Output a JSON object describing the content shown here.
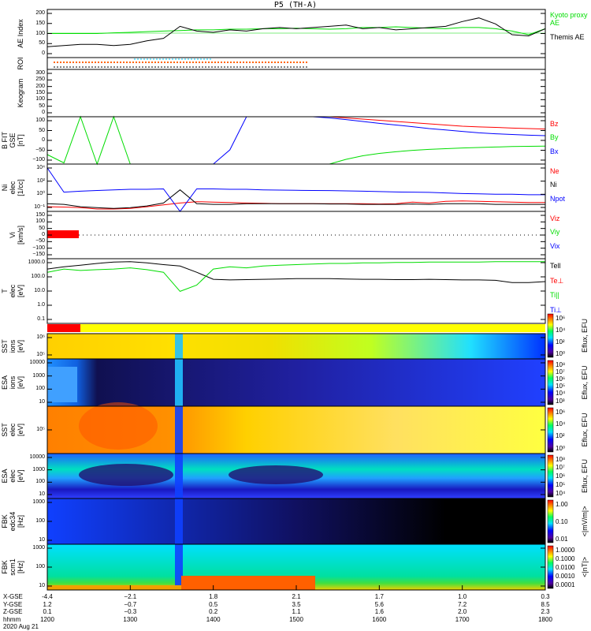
{
  "title": "P5 (TH-A)",
  "date": "2020 Aug 21",
  "colors": {
    "red": "#ff0000",
    "green": "#00dd00",
    "blue": "#0000ff",
    "black": "#000000",
    "orange": "#ff6600",
    "yellow": "#ffff00"
  },
  "chart_data": {
    "type": "line",
    "x_unit": "minutes after 1200 UT",
    "t_min": [
      0,
      20,
      40,
      60,
      80,
      100,
      120,
      140,
      160,
      180,
      200,
      220,
      240,
      260,
      280,
      300,
      320,
      340,
      360,
      380,
      400,
      420,
      440,
      460,
      480,
      500,
      520,
      540,
      560,
      580,
      600
    ],
    "panels": [
      {
        "id": "ae",
        "ylabel": "AE Index",
        "ylim": [
          0,
          200
        ],
        "ticks": [
          "200",
          "150",
          "100",
          "50",
          "0"
        ],
        "series": [
          {
            "name": "Kyoto proxy AE",
            "legend": "Kyoto proxy AE",
            "color": "#00dd00",
            "values": [
              100,
              100,
              100,
              100,
              103,
              105,
              108,
              110,
              112,
              115,
              115,
              118,
              118,
              120,
              120,
              122,
              120,
              118,
              120,
              125,
              125,
              128,
              125,
              122,
              120,
              125,
              125,
              120,
              110,
              95,
              120
            ]
          },
          {
            "name": "Themis AE",
            "legend": "Themis AE",
            "color": "#000000",
            "values": [
              45,
              50,
              55,
              55,
              50,
              55,
              70,
              80,
              130,
              110,
              105,
              115,
              110,
              120,
              125,
              120,
              125,
              130,
              135,
              120,
              125,
              115,
              120,
              125,
              130,
              150,
              165,
              140,
              95,
              90,
              120
            ]
          }
        ]
      },
      {
        "id": "roi",
        "ylabel": "ROI",
        "ticks": []
      },
      {
        "id": "keogram",
        "ylabel": "Keogram",
        "ylim": [
          0,
          300
        ],
        "ticks": [
          "300",
          "250",
          "200",
          "150",
          "100",
          "50",
          "0"
        ]
      },
      {
        "id": "bfit",
        "ylabel": "B FIT",
        "ylabel2": "GSE",
        "ylabel3": "[nT]",
        "ylim": [
          -100,
          100
        ],
        "ticks": [
          "100",
          "50",
          "0",
          "−50",
          "−100"
        ],
        "series": [
          {
            "name": "Bz",
            "legend": "Bz",
            "color": "#ff0000",
            "values": [
              null,
              null,
              null,
              null,
              null,
              null,
              null,
              null,
              null,
              null,
              null,
              null,
              null,
              null,
              null,
              null,
              null,
              100,
              95,
              90,
              85,
              80,
              75,
              70,
              65,
              60,
              57,
              55,
              52,
              50,
              48
            ]
          },
          {
            "name": "By",
            "legend": "By",
            "color": "#00dd00",
            "values": [
              -60,
              -95,
              100,
              -100,
              100,
              -100,
              -100,
              -100,
              -100,
              -100,
              -100,
              -100,
              -100,
              -100,
              -100,
              -100,
              -100,
              -100,
              -80,
              -65,
              -55,
              -48,
              -42,
              -38,
              -35,
              -32,
              -30,
              -28,
              -26,
              -25,
              -24
            ]
          },
          {
            "name": "Bx",
            "legend": "Bx",
            "color": "#0000ff",
            "values": [
              -100,
              -100,
              -100,
              -100,
              -100,
              -100,
              -100,
              -100,
              -100,
              -100,
              -100,
              -40,
              100,
              100,
              100,
              100,
              100,
              95,
              88,
              80,
              72,
              65,
              58,
              50,
              44,
              38,
              32,
              28,
              25,
              22,
              20
            ]
          }
        ]
      },
      {
        "id": "ni",
        "ylabel": "Ni",
        "ylabel2": "elec",
        "ylabel3": "[1/cc]",
        "scale": "log",
        "ylim": [
          -1.3,
          4.8
        ],
        "ticks": [
          "10⁴",
          "10²",
          "10⁰",
          "10⁻¹"
        ],
        "series": [
          {
            "name": "Ne",
            "legend": "Ne",
            "color": "#ff0000",
            "values": [
              0.2,
              0.18,
              0.15,
              0.1,
              0.1,
              0.12,
              0.2,
              0.35,
              0.6,
              0.9,
              0.8,
              0.7,
              0.6,
              0.55,
              0.5,
              0.5,
              0.5,
              0.5,
              0.5,
              0.5,
              0.45,
              0.5,
              0.8,
              0.6,
              1.0,
              1.1,
              1.0,
              0.9,
              0.8,
              0.7,
              0.7
            ]
          },
          {
            "name": "Ni",
            "legend": "Ni",
            "color": "#000000",
            "values": [
              0.5,
              0.4,
              0.2,
              0.15,
              0.12,
              0.15,
              0.25,
              0.6,
              30,
              0.5,
              0.4,
              0.4,
              0.5,
              0.5,
              0.5,
              0.5,
              0.5,
              0.45,
              0.45,
              0.4,
              0.4,
              0.4,
              0.45,
              0.4,
              0.5,
              0.5,
              0.5,
              0.4,
              0.4,
              0.4,
              0.4
            ]
          },
          {
            "name": "Npot",
            "legend": "Npot",
            "color": "#0000ff",
            "values": [
              20000,
              15,
              20,
              25,
              30,
              35,
              35,
              40,
              0.05,
              40,
              40,
              35,
              35,
              30,
              28,
              26,
              25,
              24,
              22,
              20,
              18,
              16,
              15,
              14,
              12,
              10,
              9,
              8,
              8,
              7,
              7
            ]
          }
        ]
      },
      {
        "id": "vi",
        "ylabel": "Vi",
        "ylabel3": "[km/s]",
        "ylim": [
          -150,
          150
        ],
        "ticks": [
          "150",
          "100",
          "50",
          "0",
          "−50",
          "−100",
          "−150"
        ],
        "series": [
          {
            "name": "Viz",
            "legend": "Viz",
            "color": "#ff0000",
            "values": [
              0,
              0,
              null,
              null,
              null,
              null,
              null,
              null,
              null,
              null,
              null,
              null,
              null,
              null,
              null,
              null,
              null,
              null,
              null,
              null,
              null,
              null,
              null,
              null,
              null,
              null,
              null,
              null,
              null,
              null,
              null
            ]
          },
          {
            "name": "Viy",
            "legend": "Viy",
            "color": "#00dd00",
            "values": []
          },
          {
            "name": "Vix",
            "legend": "Vix",
            "color": "#0000ff",
            "values": []
          }
        ]
      },
      {
        "id": "ti",
        "ylabel": "T",
        "ylabel2": "elec",
        "ylabel3": "[eV]",
        "scale": "log",
        "ylim": [
          -1,
          3.4
        ],
        "ticks": [
          "1000.0",
          "100.0",
          "10.0",
          "1.0",
          "0.1"
        ],
        "series": [
          {
            "name": "Tell",
            "legend": "Tell",
            "color": "#000000",
            "values": [
              500,
              700,
              900,
              1200,
              1500,
              1600,
              1300,
              1000,
              800,
              300,
              100,
              90,
              95,
              100,
              105,
              110,
              110,
              110,
              105,
              100,
              100,
              95,
              95,
              100,
              95,
              90,
              90,
              85,
              60,
              60,
              70
            ]
          },
          {
            "name": "Te⊥",
            "legend": "Te⊥",
            "color": "#ff0000",
            "values": []
          },
          {
            "name": "Ti||",
            "legend": "Ti||",
            "color": "#00dd00",
            "values": [
              300,
              500,
              400,
              450,
              500,
              600,
              450,
              300,
              15,
              40,
              500,
              700,
              600,
              800,
              900,
              1000,
              1100,
              1200,
              1200,
              1300,
              1300,
              1400,
              1400,
              1500,
              1500,
              1500,
              1500,
              1600,
              1600,
              1600,
              1600
            ]
          },
          {
            "name": "Ti⊥",
            "legend": "Ti⊥",
            "color": "#0000ff",
            "values": []
          }
        ]
      }
    ],
    "spectrograms": [
      {
        "id": "sst-ions",
        "ylabel": "SST",
        "ylabel2": "ions",
        "ylabel3": "[eV]",
        "ticks": [
          "10⁶",
          "10⁵"
        ],
        "cbar_ticks": [
          "10⁶",
          "10⁴",
          "10²",
          "10⁰"
        ],
        "cbar_label": "Eflux, EFU"
      },
      {
        "id": "esa-ions",
        "ylabel": "ESA",
        "ylabel2": "ions",
        "ylabel3": "[eV]",
        "ticks": [
          "10000",
          "1000",
          "100",
          "10"
        ],
        "cbar_ticks": [
          "10⁸",
          "10⁷",
          "10⁶",
          "10⁵",
          "10⁴",
          "10³"
        ],
        "cbar_label": "Eflux, EFU"
      },
      {
        "id": "sst-elec",
        "ylabel": "SST",
        "ylabel2": "elec",
        "ylabel3": "[eV]",
        "ticks": [
          "10⁵"
        ],
        "cbar_ticks": [
          "10⁶",
          "10⁴",
          "10²",
          "10⁰"
        ],
        "cbar_label": "Eflux, EFU"
      },
      {
        "id": "esa-elec",
        "ylabel": "ESA",
        "ylabel2": "elec",
        "ylabel3": "[eV]",
        "ticks": [
          "10000",
          "1000",
          "100",
          "10"
        ],
        "cbar_ticks": [
          "10⁸",
          "10⁷",
          "10⁶",
          "10⁵",
          "10⁴"
        ],
        "cbar_label": "Eflux, EFU"
      },
      {
        "id": "fbk-edc34",
        "ylabel": "FBK",
        "ylabel2": "edc34",
        "ylabel3": "[Hz]",
        "ticks": [
          "1000",
          "100",
          "10"
        ],
        "cbar_ticks": [
          "1.00",
          "0.10",
          "0.01"
        ],
        "cbar_label": "<|mV/m|>"
      },
      {
        "id": "fbk-scm1",
        "ylabel": "FBK",
        "ylabel2": "scm1",
        "ylabel3": "[Hz]",
        "ticks": [
          "1000",
          "100",
          "10"
        ],
        "cbar_ticks": [
          "1.0000",
          "0.1000",
          "0.0100",
          "0.0010",
          "0.0001"
        ],
        "cbar_label": "<|nT|>"
      }
    ],
    "x_axis": {
      "row_labels": [
        "X-GSE",
        "Y-GSE",
        "Z-GSE",
        "hhmm"
      ],
      "columns": [
        {
          "x": "-4.4",
          "y": "1.2",
          "z": "0.1",
          "t": "1200"
        },
        {
          "x": "−2.1",
          "y": "−0.7",
          "z": "−0.3",
          "t": "1300"
        },
        {
          "x": "1.8",
          "y": "0.5",
          "z": "0.2",
          "t": "1400"
        },
        {
          "x": "2.1",
          "y": "3.5",
          "z": "1.1",
          "t": "1500"
        },
        {
          "x": "1.7",
          "y": "5.6",
          "z": "1.6",
          "t": "1600"
        },
        {
          "x": "1.0",
          "y": "7.2",
          "z": "2.0",
          "t": "1700"
        },
        {
          "x": "0.3",
          "y": "8.5",
          "z": "2.3",
          "t": "1800"
        }
      ]
    }
  }
}
